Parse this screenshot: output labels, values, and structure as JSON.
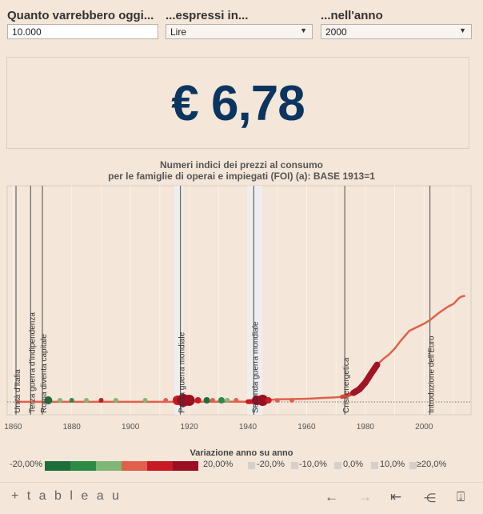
{
  "controls": {
    "amount_label": "Quanto varrebbero oggi...",
    "amount_value": "10.000",
    "currency_label": "...espressi in...",
    "currency_value": "Lire",
    "year_label": "...nell'anno",
    "year_value": "2000"
  },
  "result": {
    "value": "€ 6,78"
  },
  "chart_data": {
    "type": "line",
    "title_line1": "Numeri indici dei prezzi al consumo",
    "title_line2": "per le famiglie di operai e impiegati (FOI) (a): BASE 1913=1",
    "xlabel": "",
    "ylabel": "",
    "xlim": [
      1858,
      2016
    ],
    "ylim": [
      0,
      4100
    ],
    "x_ticks": [
      "1860",
      "1880",
      "1900",
      "1920",
      "1940",
      "1960",
      "1980",
      "2000"
    ],
    "series": [
      {
        "x": [
          1861,
          1870,
          1880,
          1890,
          1900,
          1910,
          1913,
          1915,
          1917,
          1918,
          1920,
          1925,
          1930,
          1935,
          1940,
          1942,
          1944,
          1946,
          1950,
          1955,
          1960,
          1965,
          1970,
          1972,
          1974,
          1976,
          1978,
          1980,
          1982,
          1984,
          1986,
          1988,
          1990,
          1992,
          1995,
          2000,
          2002,
          2005,
          2008,
          2010,
          2012,
          2013,
          2014
        ],
        "values": [
          0.9,
          1.0,
          1.0,
          0.95,
          0.95,
          1.0,
          1.0,
          1.3,
          2.0,
          2.6,
          3.6,
          5.1,
          4.6,
          3.8,
          5.4,
          7.2,
          20,
          30,
          50,
          55,
          62,
          78,
          90,
          100,
          130,
          180,
          250,
          380,
          560,
          730,
          840,
          930,
          1050,
          1200,
          1400,
          1540,
          1610,
          1750,
          1870,
          1930,
          2050,
          2080,
          2090
        ]
      }
    ],
    "events": [
      {
        "year": 1861,
        "label": "Unità d'Italia"
      },
      {
        "year": 1866,
        "label": "Terza guerra d'indipendenza"
      },
      {
        "year": 1870,
        "label": "Roma diventa capitale"
      },
      {
        "year": 1917,
        "label": "Prima guerra mondiale"
      },
      {
        "year": 1942,
        "label": "Seconda guerra mondiale"
      },
      {
        "year": 1973,
        "label": "Crisi energetica"
      },
      {
        "year": 2002,
        "label": "Introduzione dell'Euro"
      }
    ],
    "shaded_periods": [
      [
        1915,
        1918
      ],
      [
        1940,
        1945
      ]
    ],
    "legend": {
      "title": "Variazione anno su anno",
      "min_label": "-20,00%",
      "max_label": "20,00%",
      "gray_labels": [
        "-20,0%",
        "-10,0%",
        "0,0%",
        "10,0%",
        "≥20,0%"
      ],
      "colors": [
        "#1e6e3c",
        "#2e8b46",
        "#7fb776",
        "#e0604e",
        "#c61b25",
        "#9a0f22"
      ]
    },
    "grid": true
  },
  "footer": {
    "logo": "+ t a b l e a u"
  }
}
